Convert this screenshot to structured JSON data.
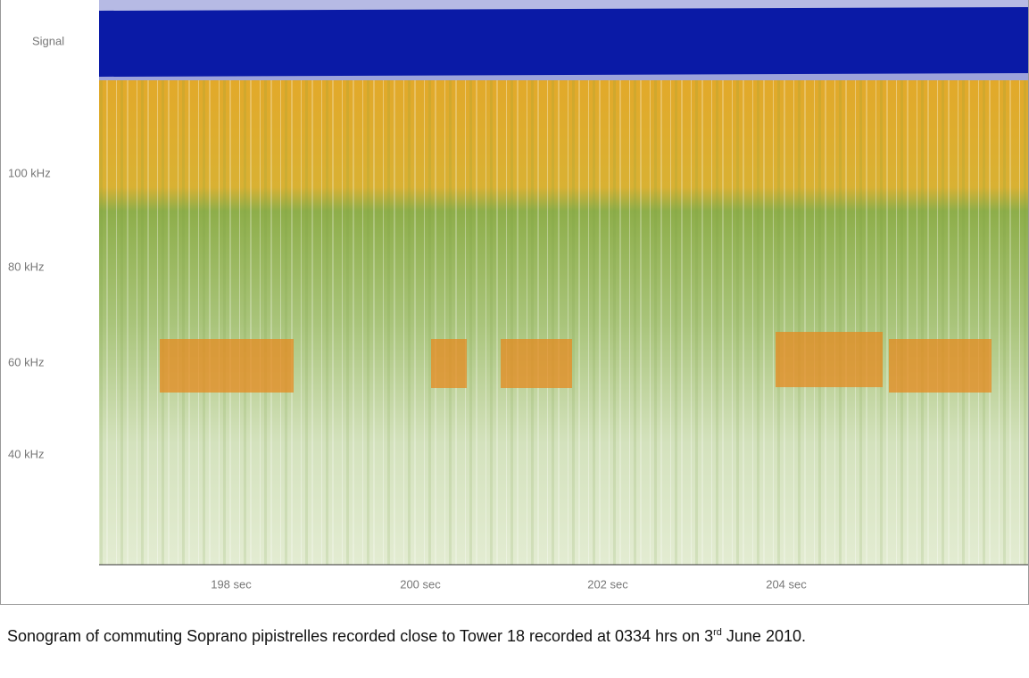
{
  "figure": {
    "row_labels": [
      "Signal",
      "100 kHz",
      "80 kHz",
      "60 kHz",
      "40 kHz"
    ],
    "time_labels": [
      "198 sec",
      "200 sec",
      "202 sec",
      "204 sec"
    ]
  },
  "caption": {
    "before": "Sonogram of commuting Soprano pipistrelles recorded close to Tower 18 recorded at 0334 hrs on 3",
    "sup": "rd",
    "after": " June 2010."
  }
}
